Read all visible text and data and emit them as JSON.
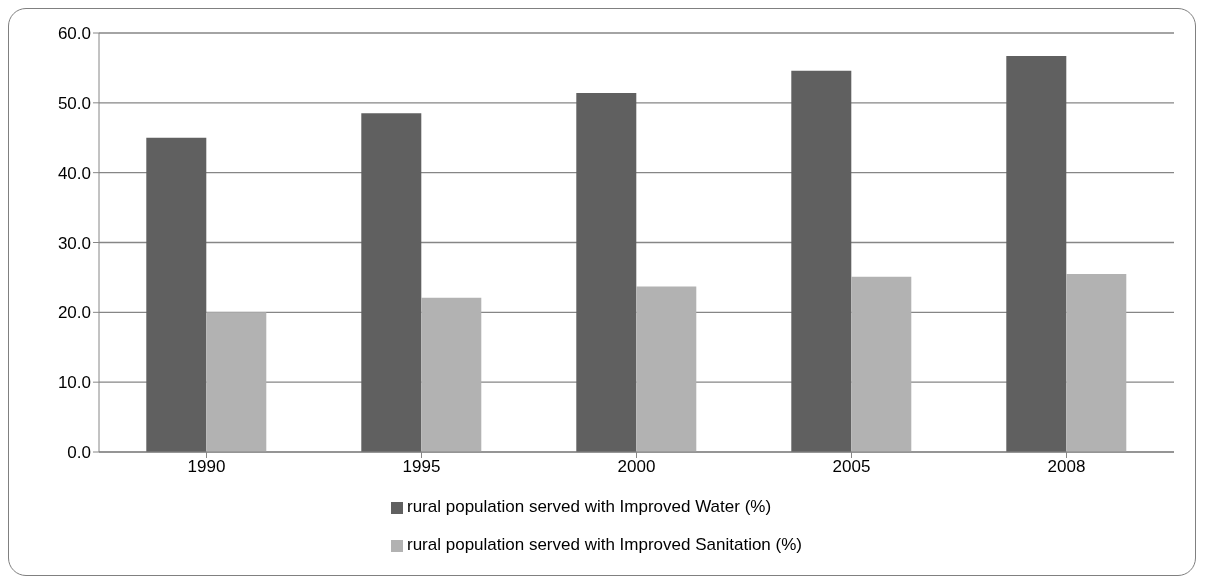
{
  "chart_data": {
    "type": "bar",
    "categories": [
      "1990",
      "1995",
      "2000",
      "2005",
      "2008"
    ],
    "series": [
      {
        "name": "rural population served with Improved Water (%)",
        "color": "#606060",
        "values": [
          45.0,
          48.5,
          51.4,
          54.6,
          56.7
        ]
      },
      {
        "name": "rural population served with Improved Sanitation (%)",
        "color": "#b2b2b2",
        "values": [
          20.0,
          22.1,
          23.7,
          25.1,
          25.5
        ]
      }
    ],
    "ylim": [
      0,
      60
    ],
    "yticks": [
      {
        "value": 0,
        "label": "0.0"
      },
      {
        "value": 10,
        "label": "10.0"
      },
      {
        "value": 20,
        "label": "20.0"
      },
      {
        "value": 30,
        "label": "30.0"
      },
      {
        "value": 40,
        "label": "40.0"
      },
      {
        "value": 50,
        "label": "50.0"
      },
      {
        "value": 60,
        "label": "60.0"
      }
    ],
    "grid": "y",
    "legend": "bottom"
  }
}
